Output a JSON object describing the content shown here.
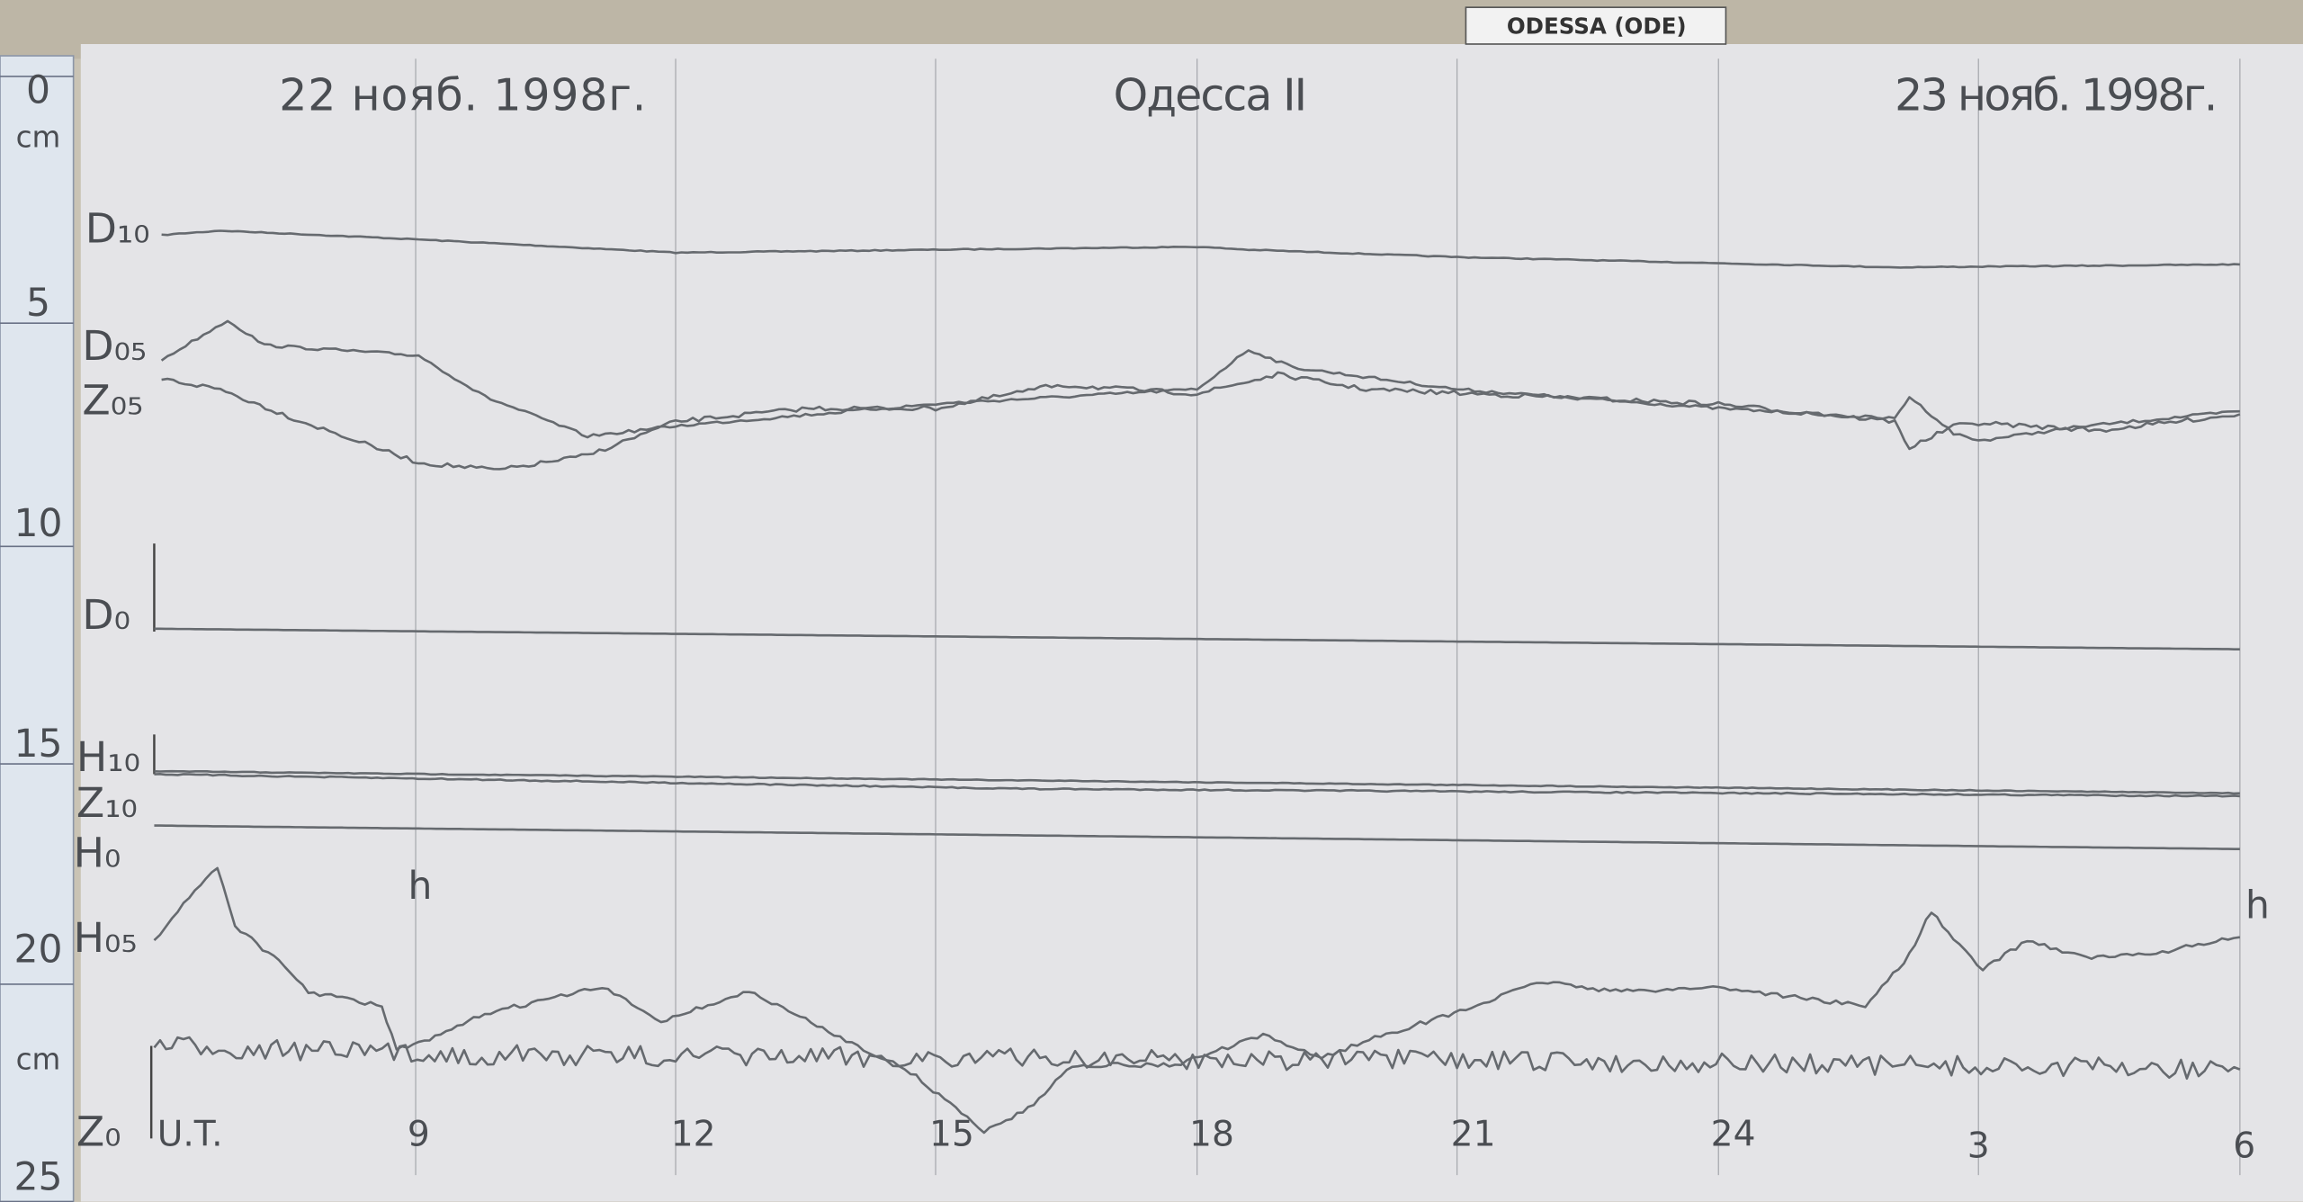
{
  "header": {
    "station": "ODESSA (ODE)"
  },
  "record": {
    "date_start": "22 нояб. 1998г.",
    "title": "Одесса II",
    "date_end": "23 нояб. 1998г."
  },
  "ruler": {
    "labels": [
      "0",
      "cm",
      "5",
      "10",
      "15",
      "20",
      "cm",
      "25"
    ]
  },
  "traces": [
    "D₁₀",
    "D₀₅",
    "Z₀₅",
    "D₀",
    "H₁₀",
    "Z₁₀",
    "H₀",
    "H₀₅",
    "Z₀"
  ],
  "time_axis": {
    "labels": [
      "U.T.",
      "9",
      "12",
      "15",
      "18",
      "21",
      "24",
      "3",
      "6"
    ],
    "unit_marks": [
      "h",
      "h"
    ]
  }
}
